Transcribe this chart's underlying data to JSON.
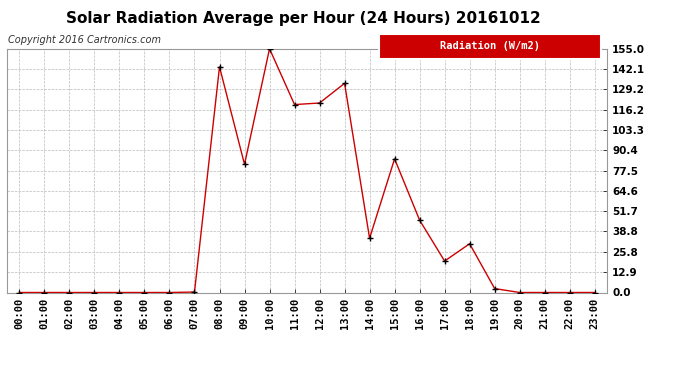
{
  "title": "Solar Radiation Average per Hour (24 Hours) 20161012",
  "copyright": "Copyright 2016 Cartronics.com",
  "legend_label": "Radiation (W/m2)",
  "hours": [
    "00:00",
    "01:00",
    "02:00",
    "03:00",
    "04:00",
    "05:00",
    "06:00",
    "07:00",
    "08:00",
    "09:00",
    "10:00",
    "11:00",
    "12:00",
    "13:00",
    "14:00",
    "15:00",
    "16:00",
    "17:00",
    "18:00",
    "19:00",
    "20:00",
    "21:00",
    "22:00",
    "23:00"
  ],
  "values": [
    0.0,
    0.0,
    0.0,
    0.0,
    0.0,
    0.0,
    0.0,
    0.3,
    143.5,
    81.5,
    155.0,
    119.5,
    120.5,
    133.0,
    34.5,
    85.0,
    46.0,
    20.0,
    31.0,
    2.5,
    0.0,
    0.0,
    0.0,
    0.0
  ],
  "yticks": [
    0.0,
    12.9,
    25.8,
    38.8,
    51.7,
    64.6,
    77.5,
    90.4,
    103.3,
    116.2,
    129.2,
    142.1,
    155.0
  ],
  "ymax": 155.0,
  "ymin": 0.0,
  "line_color": "#cc0000",
  "marker_color": "#000000",
  "plot_bg_color": "#ffffff",
  "fig_bg_color": "#ffffff",
  "grid_color": "#bbbbbb",
  "legend_bg": "#cc0000",
  "legend_text_color": "#ffffff",
  "title_fontsize": 11,
  "copyright_fontsize": 7,
  "tick_fontsize": 7.5,
  "legend_fontsize": 7.5
}
